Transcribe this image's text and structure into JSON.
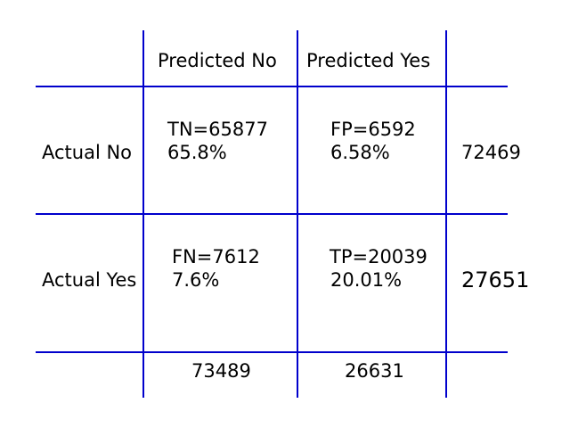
{
  "matrix": {
    "header": {
      "predicted_no": "Predicted No",
      "predicted_yes": "Predicted Yes"
    },
    "rows": {
      "actual_no": "Actual No",
      "actual_yes": "Actual Yes"
    },
    "cells": {
      "tn": {
        "count": "TN=65877",
        "pct": "65.8%"
      },
      "fp": {
        "count": "FP=6592",
        "pct": "6.58%"
      },
      "fn": {
        "count": "FN=7612",
        "pct": "7.6%"
      },
      "tp": {
        "count": "TP=20039",
        "pct": "20.01%"
      }
    },
    "row_totals": {
      "actual_no": "72469",
      "actual_yes": "27651"
    },
    "col_totals": {
      "predicted_no": "73489",
      "predicted_yes": "26631"
    },
    "line_color": "#0000cc"
  }
}
